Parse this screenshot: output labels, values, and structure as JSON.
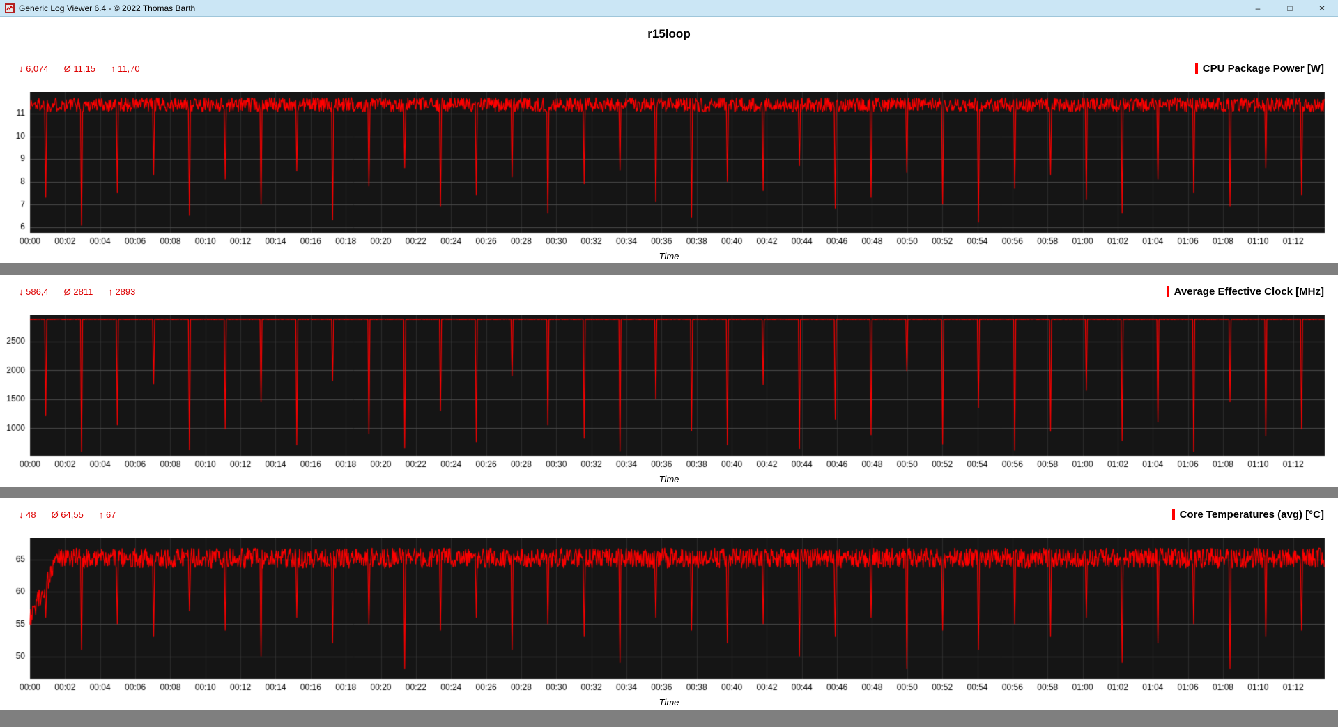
{
  "window": {
    "app_title": "Generic Log Viewer 6.4 - © 2022 Thomas Barth",
    "controls": {
      "minimize": "–",
      "maximize": "□",
      "close": "✕"
    }
  },
  "page_title": "r15loop",
  "colors": {
    "titlebar_bg": "#cbe6f5",
    "separator": "#7f7f7f",
    "stats_red": "#dd0000",
    "series_red": "#ff0000",
    "plot_bg": "#151515",
    "grid_major": "#4a4a4a",
    "grid_minor": "#2c2c2c"
  },
  "time_axis": {
    "label": "Time",
    "xmax_minutes": 73.8,
    "tick_interval_minutes": 2,
    "tick_labels": [
      "00:00",
      "00:02",
      "00:04",
      "00:06",
      "00:08",
      "00:10",
      "00:12",
      "00:14",
      "00:16",
      "00:18",
      "00:20",
      "00:22",
      "00:24",
      "00:26",
      "00:28",
      "00:30",
      "00:32",
      "00:34",
      "00:36",
      "00:38",
      "00:40",
      "00:42",
      "00:44",
      "00:46",
      "00:48",
      "00:50",
      "00:52",
      "00:54",
      "00:56",
      "00:58",
      "01:00",
      "01:02",
      "01:04",
      "01:06",
      "01:08",
      "01:10",
      "01:12"
    ]
  },
  "noise_seed": 1337,
  "dip_times_minutes": [
    0.9,
    2.95,
    4.99,
    7.04,
    9.08,
    11.13,
    13.17,
    15.22,
    17.26,
    19.31,
    21.35,
    23.4,
    25.44,
    27.49,
    29.53,
    31.58,
    33.62,
    35.67,
    37.71,
    39.76,
    41.8,
    43.85,
    45.89,
    47.94,
    49.98,
    52.03,
    54.07,
    56.12,
    58.16,
    60.21,
    62.25,
    64.3,
    66.34,
    68.39,
    70.43,
    72.48
  ],
  "chart_data": [
    {
      "type": "line",
      "title": "CPU Package Power [W]",
      "series_color": "#ff0000",
      "stats": {
        "min_label": "↓ 6,074",
        "avg_label": "Ø 11,15",
        "max_label": "↑ 11,70"
      },
      "stats_values": {
        "min": 6.074,
        "avg": 11.15,
        "max": 11.7
      },
      "ylim": [
        5.75,
        11.95
      ],
      "y_ticks": [
        6,
        7,
        8,
        9,
        10,
        11
      ],
      "baseline": 11.4,
      "noise_amplitude": 0.33,
      "value_cap": 11.7,
      "sample_interval_minutes": 0.03,
      "dip_values": [
        7.3,
        6.07,
        7.5,
        8.3,
        6.5,
        8.1,
        7.0,
        8.45,
        6.3,
        7.8,
        8.6,
        6.9,
        7.4,
        8.2,
        6.6,
        7.9,
        8.5,
        7.1,
        6.4,
        8.0,
        7.6,
        8.7,
        6.8,
        7.3,
        8.4,
        7.0,
        6.2,
        7.7,
        8.3,
        7.2,
        6.6,
        8.1,
        7.5,
        6.9,
        8.6,
        7.4
      ]
    },
    {
      "type": "line",
      "title": "Average Effective Clock [MHz]",
      "series_color": "#ff0000",
      "stats": {
        "min_label": "↓ 586,4",
        "avg_label": "Ø 2811",
        "max_label": "↑ 2893"
      },
      "stats_values": {
        "min": 586.4,
        "avg": 2811,
        "max": 2893
      },
      "ylim": [
        520,
        2960
      ],
      "y_ticks": [
        1000,
        1500,
        2000,
        2500
      ],
      "baseline": 2888,
      "noise_amplitude": 5,
      "value_cap": 2893,
      "sample_interval_minutes": 0.03,
      "dip_values": [
        1210,
        586,
        1050,
        1760,
        620,
        980,
        1450,
        700,
        1820,
        900,
        650,
        1300,
        760,
        1900,
        1050,
        820,
        600,
        1500,
        950,
        700,
        1750,
        640,
        1150,
        880,
        1990,
        720,
        1350,
        610,
        940,
        1650,
        780,
        1100,
        590,
        1450,
        860,
        980
      ]
    },
    {
      "type": "line",
      "title": "Core Temperatures (avg) [°C]",
      "series_color": "#ff0000",
      "stats": {
        "min_label": "↓ 48",
        "avg_label": "Ø 64,55",
        "max_label": "↑ 67"
      },
      "stats_values": {
        "min": 48,
        "avg": 64.55,
        "max": 67
      },
      "ylim": [
        46.5,
        68.3
      ],
      "y_ticks": [
        50,
        55,
        60,
        65
      ],
      "baseline": 65.2,
      "noise_amplitude": 1.6,
      "value_cap": 67,
      "sample_interval_minutes": 0.03,
      "ramp": {
        "start_value": 56,
        "duration_minutes": 1.6
      },
      "dip_values": [
        56,
        51,
        55,
        53,
        57,
        54,
        50,
        56,
        52,
        55,
        48,
        54,
        56,
        51,
        55,
        53,
        49,
        56,
        54,
        52,
        55,
        50,
        53,
        56,
        48,
        54,
        51,
        55,
        53,
        56,
        49,
        52,
        55,
        48,
        53,
        54
      ]
    }
  ]
}
